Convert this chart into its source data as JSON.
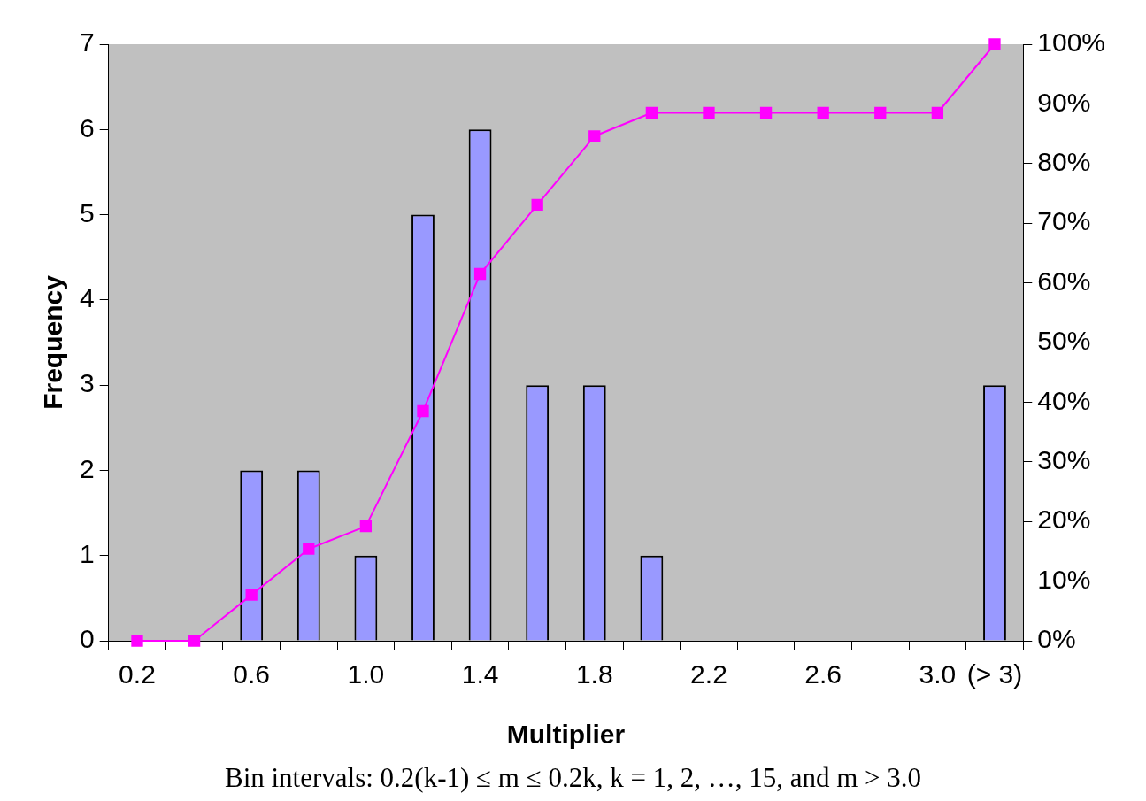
{
  "chart_data": {
    "type": "bar",
    "xlabel": "Multiplier",
    "ylabel": "Frequency",
    "categories": [
      "0.2",
      null,
      "0.6",
      null,
      "1.0",
      null,
      "1.4",
      null,
      "1.8",
      null,
      "2.2",
      null,
      "2.6",
      null,
      "3.0",
      "(> 3)"
    ],
    "series": [
      {
        "color": "#9999ff",
        "values": [
          0,
          0,
          2,
          2,
          1,
          5,
          6,
          3,
          3,
          1,
          0,
          0,
          0,
          0,
          0,
          3
        ]
      },
      {
        "type": "line",
        "axis": "y2",
        "color": "#ff00ff",
        "marker": "square",
        "values": [
          0,
          0,
          7.7,
          15.4,
          19.2,
          38.5,
          61.5,
          73.1,
          84.6,
          88.5,
          88.5,
          88.5,
          88.5,
          88.5,
          88.5,
          100
        ]
      }
    ],
    "ylim": [
      0,
      7
    ],
    "yticks": [
      0,
      1,
      2,
      3,
      4,
      5,
      6,
      7
    ],
    "y2lim": [
      0,
      100
    ],
    "y2ticks": [
      {
        "value": 0,
        "label": "0%"
      },
      {
        "value": 10,
        "label": "10%"
      },
      {
        "value": 20,
        "label": "20%"
      },
      {
        "value": 30,
        "label": "30%"
      },
      {
        "value": 40,
        "label": "40%"
      },
      {
        "value": 50,
        "label": "50%"
      },
      {
        "value": 60,
        "label": "60%"
      },
      {
        "value": 70,
        "label": "70%"
      },
      {
        "value": 80,
        "label": "80%"
      },
      {
        "value": 90,
        "label": "90%"
      },
      {
        "value": 100,
        "label": "100%"
      }
    ],
    "grid": false,
    "legend": false,
    "annotations": [
      "Bin intervals: 0.2(k-1) ≤ m ≤ 0.2k, k = 1, 2, …, 15, and m > 3.0"
    ]
  }
}
